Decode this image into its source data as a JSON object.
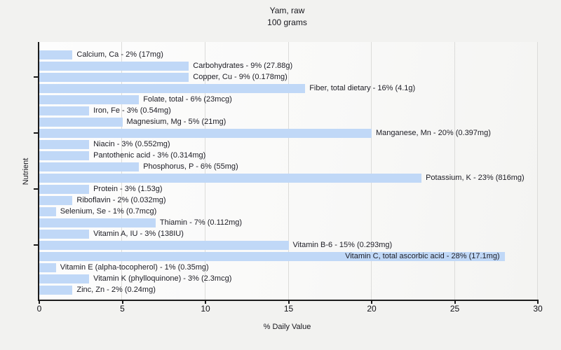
{
  "colors": {
    "page_bg": "#f2f2f0",
    "plot_bg": "#fbfbfa",
    "bar_fill": "#c0d8f7",
    "gridline": "#dcdcda",
    "axis": "#1c1c1c",
    "text": "#1c1c24"
  },
  "chart_data": {
    "type": "bar",
    "orientation": "horizontal",
    "title": "Yam, raw",
    "subtitle": "100 grams",
    "xlabel": "% Daily Value",
    "ylabel": "Nutrient",
    "xlim": [
      0,
      30
    ],
    "x_ticks": [
      0,
      5,
      10,
      15,
      20,
      25,
      30
    ],
    "grid": "vertical",
    "legend": "none",
    "y_tick_rows_from_top": [
      2,
      7,
      12,
      17
    ],
    "items": [
      {
        "nutrient": "Calcium, Ca",
        "percent": 2,
        "amount": "17mg",
        "label": "Calcium, Ca - 2% (17mg)",
        "label_inside": false
      },
      {
        "nutrient": "Carbohydrates",
        "percent": 9,
        "amount": "27.88g",
        "label": "Carbohydrates - 9% (27.88g)",
        "label_inside": false
      },
      {
        "nutrient": "Copper, Cu",
        "percent": 9,
        "amount": "0.178mg",
        "label": "Copper, Cu - 9% (0.178mg)",
        "label_inside": false
      },
      {
        "nutrient": "Fiber, total dietary",
        "percent": 16,
        "amount": "4.1g",
        "label": "Fiber, total dietary - 16% (4.1g)",
        "label_inside": false
      },
      {
        "nutrient": "Folate, total",
        "percent": 6,
        "amount": "23mcg",
        "label": "Folate, total - 6% (23mcg)",
        "label_inside": false
      },
      {
        "nutrient": "Iron, Fe",
        "percent": 3,
        "amount": "0.54mg",
        "label": "Iron, Fe - 3% (0.54mg)",
        "label_inside": false
      },
      {
        "nutrient": "Magnesium, Mg",
        "percent": 5,
        "amount": "21mg",
        "label": "Magnesium, Mg - 5% (21mg)",
        "label_inside": false
      },
      {
        "nutrient": "Manganese, Mn",
        "percent": 20,
        "amount": "0.397mg",
        "label": "Manganese, Mn - 20% (0.397mg)",
        "label_inside": false
      },
      {
        "nutrient": "Niacin",
        "percent": 3,
        "amount": "0.552mg",
        "label": "Niacin - 3% (0.552mg)",
        "label_inside": false
      },
      {
        "nutrient": "Pantothenic acid",
        "percent": 3,
        "amount": "0.314mg",
        "label": "Pantothenic acid - 3% (0.314mg)",
        "label_inside": false
      },
      {
        "nutrient": "Phosphorus, P",
        "percent": 6,
        "amount": "55mg",
        "label": "Phosphorus, P - 6% (55mg)",
        "label_inside": false
      },
      {
        "nutrient": "Potassium, K",
        "percent": 23,
        "amount": "816mg",
        "label": "Potassium, K - 23% (816mg)",
        "label_inside": false
      },
      {
        "nutrient": "Protein",
        "percent": 3,
        "amount": "1.53g",
        "label": "Protein - 3% (1.53g)",
        "label_inside": false
      },
      {
        "nutrient": "Riboflavin",
        "percent": 2,
        "amount": "0.032mg",
        "label": "Riboflavin - 2% (0.032mg)",
        "label_inside": false
      },
      {
        "nutrient": "Selenium, Se",
        "percent": 1,
        "amount": "0.7mcg",
        "label": "Selenium, Se - 1% (0.7mcg)",
        "label_inside": false
      },
      {
        "nutrient": "Thiamin",
        "percent": 7,
        "amount": "0.112mg",
        "label": "Thiamin - 7% (0.112mg)",
        "label_inside": false
      },
      {
        "nutrient": "Vitamin A, IU",
        "percent": 3,
        "amount": "138IU",
        "label": "Vitamin A, IU - 3% (138IU)",
        "label_inside": false
      },
      {
        "nutrient": "Vitamin B-6",
        "percent": 15,
        "amount": "0.293mg",
        "label": "Vitamin B-6 - 15% (0.293mg)",
        "label_inside": false
      },
      {
        "nutrient": "Vitamin C, total ascorbic acid",
        "percent": 28,
        "amount": "17.1mg",
        "label": "Vitamin C, total ascorbic acid - 28% (17.1mg)",
        "label_inside": true
      },
      {
        "nutrient": "Vitamin E (alpha-tocopherol)",
        "percent": 1,
        "amount": "0.35mg",
        "label": "Vitamin E (alpha-tocopherol) - 1% (0.35mg)",
        "label_inside": false
      },
      {
        "nutrient": "Vitamin K (phylloquinone)",
        "percent": 3,
        "amount": "2.3mcg",
        "label": "Vitamin K (phylloquinone) - 3% (2.3mcg)",
        "label_inside": false
      },
      {
        "nutrient": "Zinc, Zn",
        "percent": 2,
        "amount": "0.24mg",
        "label": "Zinc, Zn - 2% (0.24mg)",
        "label_inside": false
      }
    ]
  }
}
